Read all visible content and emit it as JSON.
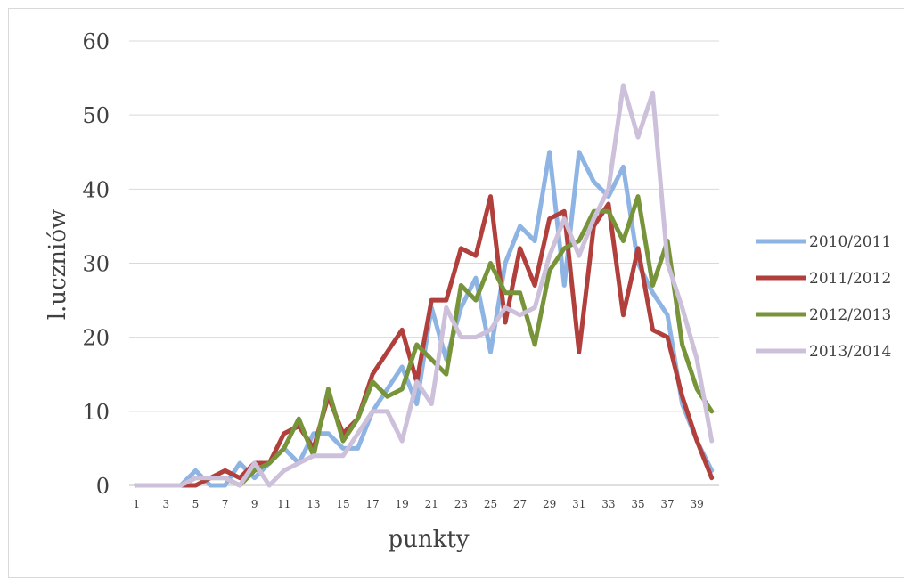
{
  "chart_data": {
    "type": "line",
    "title": "",
    "xlabel": "punkty",
    "ylabel": "l.uczniów",
    "ylim": [
      0,
      60
    ],
    "yticks": [
      "0",
      "10",
      "20",
      "30",
      "40",
      "50",
      "60"
    ],
    "x": [
      1,
      2,
      3,
      4,
      5,
      6,
      7,
      8,
      9,
      10,
      11,
      12,
      13,
      14,
      15,
      16,
      17,
      18,
      19,
      20,
      21,
      22,
      23,
      24,
      25,
      26,
      27,
      28,
      29,
      30,
      31,
      32,
      33,
      34,
      35,
      36,
      37,
      38,
      39,
      40
    ],
    "xtick_labels": [
      "1",
      "3",
      "5",
      "7",
      "9",
      "11",
      "13",
      "15",
      "17",
      "19",
      "21",
      "23",
      "25",
      "27",
      "29",
      "31",
      "33",
      "35",
      "37",
      "39"
    ],
    "grid": true,
    "legend_position": "right",
    "series": [
      {
        "name": "2010/2011",
        "color": "#8eb4e3",
        "values": [
          0,
          0,
          0,
          0,
          2,
          0,
          0,
          3,
          1,
          3,
          5,
          3,
          7,
          7,
          5,
          5,
          10,
          13,
          16,
          11,
          24,
          17,
          24,
          28,
          18,
          30,
          35,
          33,
          45,
          27,
          45,
          41,
          39,
          43,
          30,
          26,
          23,
          11,
          6,
          2
        ]
      },
      {
        "name": "2011/2012",
        "color": "#b13f3b",
        "values": [
          0,
          0,
          0,
          0,
          0,
          1,
          2,
          1,
          3,
          3,
          7,
          8,
          5,
          12,
          7,
          9,
          15,
          18,
          21,
          14,
          25,
          25,
          32,
          31,
          39,
          22,
          32,
          27,
          36,
          37,
          18,
          35,
          38,
          23,
          32,
          21,
          20,
          12,
          6,
          1
        ]
      },
      {
        "name": "2012/2013",
        "color": "#77943a",
        "values": [
          0,
          0,
          0,
          0,
          1,
          1,
          1,
          0,
          2,
          3,
          5,
          9,
          4,
          13,
          6,
          9,
          14,
          12,
          13,
          19,
          17,
          15,
          27,
          25,
          30,
          26,
          26,
          19,
          29,
          32,
          33,
          37,
          37,
          33,
          39,
          27,
          33,
          19,
          13,
          10
        ]
      },
      {
        "name": "2013/2014",
        "color": "#ccc0da",
        "values": [
          0,
          0,
          0,
          0,
          1,
          1,
          1,
          0,
          3,
          0,
          2,
          3,
          4,
          4,
          4,
          7,
          10,
          10,
          6,
          14,
          11,
          24,
          20,
          20,
          21,
          24,
          23,
          24,
          31,
          36,
          31,
          36,
          40,
          54,
          47,
          53,
          30,
          24,
          17,
          6
        ]
      }
    ]
  }
}
